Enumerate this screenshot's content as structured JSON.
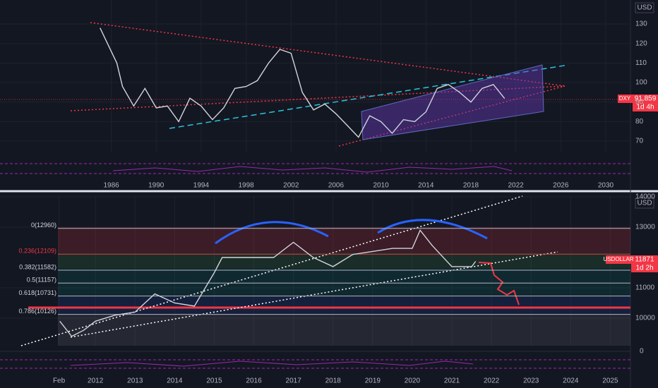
{
  "chart_data": [
    {
      "type": "line",
      "currency": "USD",
      "countdown": "1d 4h",
      "x": [
        1985.0,
        1986.5,
        1987.0,
        1988.0,
        1989.0,
        1990.0,
        1991.0,
        1992.0,
        1993.0,
        1994.0,
        1995.0,
        1996.0,
        1997.0,
        1998.0,
        1999.0,
        2000.0,
        2001.0,
        2002.0,
        2003.0,
        2004.0,
        2005.0,
        2006.0,
        2007.0,
        2008.0,
        2009.0,
        2010.0,
        2011.0,
        2012.0,
        2013.0,
        2014.0,
        2015.0,
        2016.0,
        2017.0,
        2018.0,
        2019.0,
        2020.0,
        2021.0
      ],
      "series": [
        {
          "name": "DXY",
          "color": "#d1d4dc",
          "values": [
            128,
            110,
            98,
            88,
            97,
            87,
            88,
            80,
            92,
            88,
            81,
            87,
            97,
            98,
            101,
            110,
            117,
            115,
            95,
            86,
            89,
            84,
            78,
            72,
            83,
            80,
            74,
            81,
            80,
            85,
            97,
            99,
            95,
            90,
            97,
            99,
            91.859
          ]
        }
      ],
      "xlim": [
        1976.1,
        2032.2
      ],
      "xticks": [
        1986,
        1990,
        1994,
        1998,
        2002,
        2006,
        2010,
        2014,
        2018,
        2022,
        2026,
        2030
      ],
      "ylim": [
        64.6,
        142.3
      ],
      "yticks": [
        70,
        80,
        90,
        100,
        110,
        120,
        130
      ],
      "grid": true
    },
    {
      "type": "line",
      "currency": "USD",
      "countdown": "1d 2h",
      "x": [
        2011.1,
        2011.4,
        2011.7,
        2012.0,
        2012.5,
        2013.0,
        2013.5,
        2014.0,
        2014.5,
        2015.0,
        2015.2,
        2016.0,
        2016.5,
        2017.0,
        2017.5,
        2018.0,
        2018.5,
        2019.0,
        2019.5,
        2020.0,
        2020.2,
        2020.5,
        2021.0,
        2021.5,
        2021.6
      ],
      "series": [
        {
          "name": "USDOLLAR",
          "color": "#d1d4dc",
          "values": [
            9900,
            9400,
            9600,
            9900,
            10100,
            10200,
            10800,
            10500,
            10400,
            11500,
            12000,
            12000,
            12000,
            12500,
            12000,
            11700,
            12100,
            12200,
            12300,
            12300,
            12900,
            12400,
            11700,
            11700,
            11871
          ]
        }
      ],
      "xlim": [
        2009.59,
        2025.51
      ],
      "xticks": [
        {
          "value": 2011.08,
          "label": "Feb"
        },
        2012,
        2013,
        2014,
        2015,
        2016,
        2017,
        2018,
        2019,
        2020,
        2021,
        2022,
        2023,
        2024,
        2025
      ],
      "ylim": [
        9093,
        14023
      ],
      "yticks": [
        10000,
        11000,
        13000,
        14000
      ],
      "grid": true,
      "fib_levels": [
        {
          "value": 12960,
          "label": "0(12960)"
        },
        {
          "value": 12109,
          "label": "0.236(12109)"
        },
        {
          "value": 11582,
          "label": "0.382(11582)"
        },
        {
          "value": 11157,
          "label": "0.5(11157)"
        },
        {
          "value": 10731,
          "label": "0.618(10731)"
        },
        {
          "value": 10126,
          "label": "0.786(10126)"
        }
      ],
      "oscillator_zero": 0
    }
  ]
}
